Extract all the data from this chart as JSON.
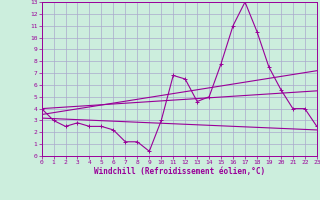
{
  "background_color": "#cceedd",
  "grid_color": "#aaaacc",
  "line_color": "#990099",
  "xlabel": "Windchill (Refroidissement éolien,°C)",
  "xlim": [
    0,
    23
  ],
  "ylim": [
    0,
    13
  ],
  "xticks": [
    0,
    1,
    2,
    3,
    4,
    5,
    6,
    7,
    8,
    9,
    10,
    11,
    12,
    13,
    14,
    15,
    16,
    17,
    18,
    19,
    20,
    21,
    22,
    23
  ],
  "yticks": [
    0,
    1,
    2,
    3,
    4,
    5,
    6,
    7,
    8,
    9,
    10,
    11,
    12,
    13
  ],
  "series1_x": [
    0,
    1,
    2,
    3,
    4,
    5,
    6,
    7,
    8,
    9,
    10,
    11,
    12,
    13,
    14,
    15,
    16,
    17,
    18,
    19,
    20,
    21,
    22,
    23
  ],
  "series1_y": [
    4.0,
    3.0,
    2.5,
    2.8,
    2.5,
    2.5,
    2.2,
    1.2,
    1.2,
    0.4,
    3.0,
    6.8,
    6.5,
    4.6,
    5.0,
    7.8,
    11.0,
    13.0,
    10.5,
    7.5,
    5.6,
    4.0,
    4.0,
    2.5
  ],
  "series2_x": [
    0,
    23
  ],
  "series2_y": [
    3.2,
    2.2
  ],
  "series3_x": [
    0,
    23
  ],
  "series3_y": [
    3.5,
    7.2
  ],
  "series4_x": [
    0,
    23
  ],
  "series4_y": [
    4.0,
    5.5
  ]
}
